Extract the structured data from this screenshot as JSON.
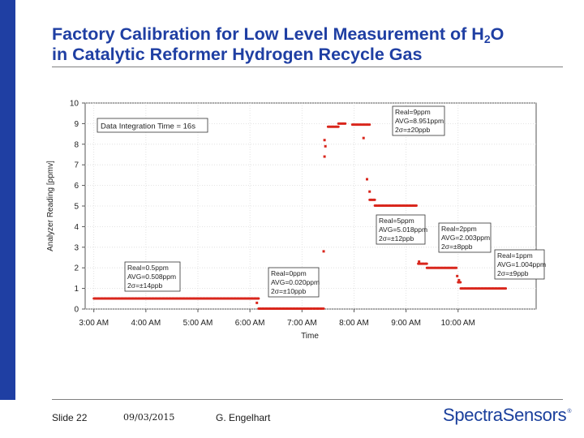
{
  "slide": {
    "title_line1_pre": "Factory Calibration for Low Level Measurement of H",
    "title_sub": "2",
    "title_line1_post": "O",
    "title_line2": "in Catalytic Reformer Hydrogen Recycle Gas",
    "slide_number": "Slide 22",
    "date": "09/03/2015",
    "author": "G. Engelhart",
    "logo": "SpectraSensors",
    "logo_trademark": "®",
    "colors": {
      "title": "#1f3fa3",
      "sidebar": "#1f3fa3",
      "data": "#d9261c",
      "logo": "#1a3f9c"
    }
  },
  "chart_data": {
    "type": "scatter",
    "xlabel": "Time",
    "ylabel": "Analyzer Reading [ppmv]",
    "ylim": [
      0,
      10
    ],
    "xlim": [
      "02:50",
      "11:30"
    ],
    "x_ticks": [
      "3:00 AM",
      "4:00 AM",
      "5:00 AM",
      "6:00 AM",
      "7:00 AM",
      "8:00 AM",
      "9:00 AM",
      "10:00 AM"
    ],
    "y_ticks": [
      "0",
      "1",
      "2",
      "3",
      "4",
      "5",
      "6",
      "7",
      "8",
      "9",
      "10"
    ],
    "grid": true,
    "annotation_box": "Data Integration Time = 16s",
    "series": [
      {
        "segments": [
          {
            "x_start": "03:00",
            "x_end": "06:10",
            "y": 0.51
          },
          {
            "x_start": "06:10",
            "x_end": "07:25",
            "y": 0.02
          },
          {
            "x_start": "07:30",
            "x_end": "07:42",
            "y": 8.85
          },
          {
            "x_start": "07:42",
            "x_end": "07:50",
            "y": 9.0
          },
          {
            "x_start": "07:58",
            "x_end": "08:18",
            "y": 8.95
          },
          {
            "x_start": "08:18",
            "x_end": "08:24",
            "y": 5.3
          },
          {
            "x_start": "08:24",
            "x_end": "09:12",
            "y": 5.02
          },
          {
            "x_start": "09:14",
            "x_end": "09:24",
            "y": 2.2
          },
          {
            "x_start": "09:24",
            "x_end": "09:58",
            "y": 2.0
          },
          {
            "x_start": "10:00",
            "x_end": "10:03",
            "y": 1.3
          },
          {
            "x_start": "10:03",
            "x_end": "10:55",
            "y": 1.0
          }
        ],
        "transients": [
          {
            "x": "06:08",
            "y": 0.3
          },
          {
            "x": "07:25",
            "y": 2.8
          },
          {
            "x": "07:26",
            "y": 7.4
          },
          {
            "x": "07:26",
            "y": 8.2
          },
          {
            "x": "07:27",
            "y": 7.9
          },
          {
            "x": "08:11",
            "y": 8.3
          },
          {
            "x": "08:15",
            "y": 6.3
          },
          {
            "x": "08:18",
            "y": 5.7
          },
          {
            "x": "09:13",
            "y": 3.6
          },
          {
            "x": "09:13",
            "y": 3.3
          },
          {
            "x": "09:15",
            "y": 2.3
          },
          {
            "x": "09:59",
            "y": 1.6
          },
          {
            "x": "10:01",
            "y": 1.4
          }
        ]
      }
    ],
    "labels": [
      {
        "lines": [
          "Real=0.5ppm",
          "AVG=0.508ppm",
          "2σ=±14ppb"
        ]
      },
      {
        "lines": [
          "Real=0ppm",
          "AVG=0.020ppm",
          "2σ=±10ppb"
        ]
      },
      {
        "lines": [
          "Real=9ppm",
          "AVG=8.951ppm",
          "2σ=±20ppb"
        ]
      },
      {
        "lines": [
          "Real=5ppm",
          "AVG=5.018ppm",
          "2σ=±12ppb"
        ]
      },
      {
        "lines": [
          "Real=2ppm",
          "AVG=2.003ppm",
          "2σ=±8ppb"
        ]
      },
      {
        "lines": [
          "Real=1ppm",
          "AVG=1.004ppm",
          "2σ=±9ppb"
        ]
      }
    ]
  }
}
